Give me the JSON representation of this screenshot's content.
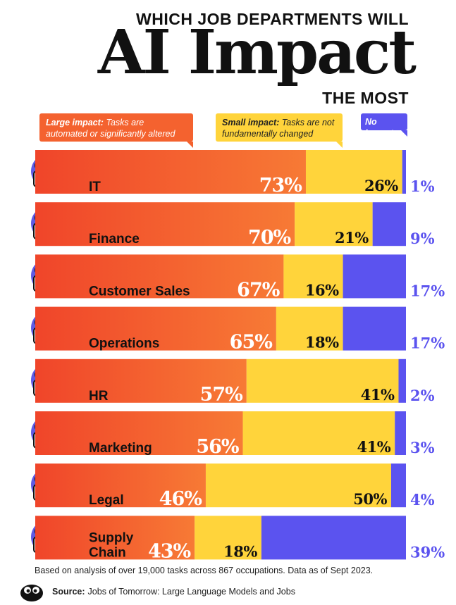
{
  "header": {
    "pre_title": "WHICH JOB DEPARTMENTS WILL",
    "main_title": "AI Impact",
    "post_title": "THE MOST"
  },
  "legend": {
    "large": {
      "label": "Large impact:",
      "desc": "Tasks are automated or significantly altered"
    },
    "small": {
      "label": "Small impact:",
      "desc": "Tasks are not fundamentally changed"
    },
    "none": {
      "label": "No impact"
    }
  },
  "colors": {
    "large": "#f4622f",
    "large_dark": "#f0452a",
    "small": "#ffd43b",
    "none": "#5b53ef",
    "label_ink": "#111111",
    "none_text": "#5b53ef"
  },
  "chart_data": {
    "type": "bar",
    "orientation": "horizontal",
    "stacked": true,
    "categories": [
      "IT",
      "Finance",
      "Customer Sales",
      "Operations",
      "HR",
      "Marketing",
      "Legal",
      "Supply Chain"
    ],
    "category_lines": [
      [
        "IT"
      ],
      [
        "Finance"
      ],
      [
        "Customer Sales"
      ],
      [
        "Operations"
      ],
      [
        "HR"
      ],
      [
        "Marketing"
      ],
      [
        "Legal"
      ],
      [
        "Supply",
        "Chain"
      ]
    ],
    "series": [
      {
        "name": "Large impact",
        "values": [
          73,
          70,
          67,
          65,
          57,
          56,
          46,
          43
        ],
        "labels": [
          "73%",
          "70%",
          "67%",
          "65%",
          "57%",
          "56%",
          "46%",
          "43%"
        ]
      },
      {
        "name": "Small impact",
        "values": [
          26,
          21,
          16,
          18,
          41,
          41,
          50,
          18
        ],
        "labels": [
          "26%",
          "21%",
          "16%",
          "18%",
          "41%",
          "41%",
          "50%",
          "18%"
        ]
      },
      {
        "name": "No impact",
        "values": [
          1,
          9,
          17,
          17,
          2,
          3,
          4,
          39
        ],
        "labels": [
          "1%",
          "9%",
          "17%",
          "17%",
          "2%",
          "3%",
          "4%",
          "39%"
        ]
      }
    ],
    "xlim": [
      0,
      100
    ],
    "grid": false,
    "legend_position": "top"
  },
  "footer": {
    "note": "Based on analysis of over 19,000 tasks across 867 occupations. Data as of Sept 2023.",
    "source_label": "Source:",
    "source_text": "Jobs of Tomorrow: Large Language Models and Jobs"
  }
}
